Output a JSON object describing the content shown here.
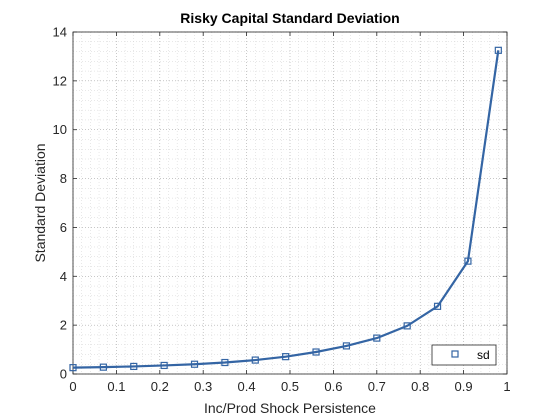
{
  "chart_data": {
    "type": "line",
    "title": "Risky Capital Standard Deviation",
    "xlabel": "Inc/Prod Shock Persistence",
    "ylabel": "Standard Deviation",
    "xlim": [
      0,
      1
    ],
    "ylim": [
      0,
      14
    ],
    "xticks": [
      0,
      0.1,
      0.2,
      0.3,
      0.4,
      0.5,
      0.6,
      0.7,
      0.8,
      0.9,
      1
    ],
    "xtick_labels": [
      "0",
      "0.1",
      "0.2",
      "0.3",
      "0.4",
      "0.5",
      "0.6",
      "0.7",
      "0.8",
      "0.9",
      "1"
    ],
    "yticks": [
      0,
      2,
      4,
      6,
      8,
      10,
      12,
      14
    ],
    "ytick_labels": [
      "0",
      "2",
      "4",
      "6",
      "8",
      "10",
      "12",
      "14"
    ],
    "grid": "on (dotted, major and minor)",
    "legend_position": "bottom-right",
    "line_color": "#3465a4",
    "marker": "square",
    "series": [
      {
        "name": "sd",
        "x": [
          0.0,
          0.07,
          0.14,
          0.21,
          0.28,
          0.35,
          0.42,
          0.49,
          0.56,
          0.63,
          0.7,
          0.77,
          0.84,
          0.91,
          0.98
        ],
        "values": [
          0.26,
          0.28,
          0.31,
          0.35,
          0.4,
          0.47,
          0.57,
          0.71,
          0.9,
          1.15,
          1.47,
          1.97,
          2.77,
          4.62,
          13.25
        ]
      }
    ]
  }
}
